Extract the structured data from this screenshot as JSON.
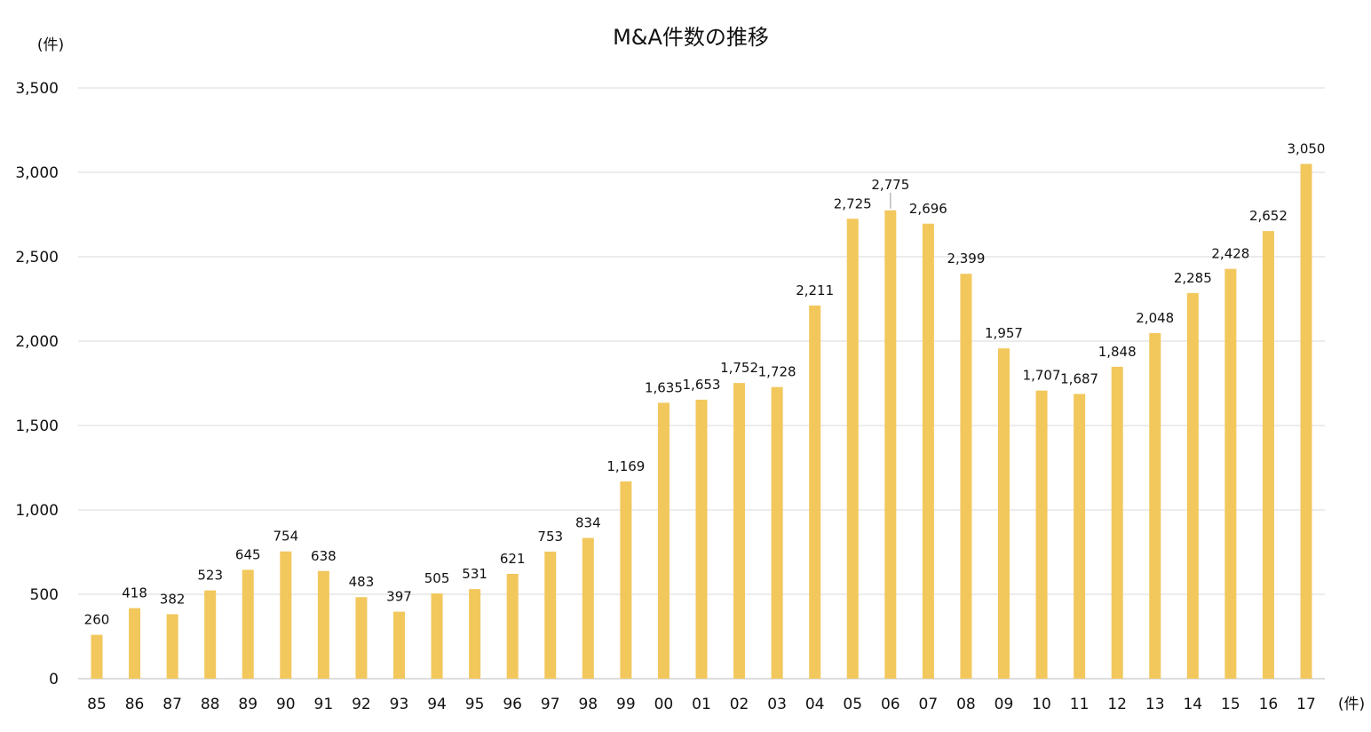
{
  "chart_data": {
    "type": "bar",
    "title": "M&A件数の推移",
    "ylabel": "(件)",
    "xlabel": "(件)",
    "ylim": [
      0,
      3500
    ],
    "yticks": [
      0,
      500,
      1000,
      1500,
      2000,
      2500,
      3000,
      3500
    ],
    "ytick_labels": [
      "0",
      "500",
      "1,000",
      "1,500",
      "2,000",
      "2,500",
      "3,000",
      "3,500"
    ],
    "grid": true,
    "bar_color": "#F2C75C",
    "categories": [
      "85",
      "86",
      "87",
      "88",
      "89",
      "90",
      "91",
      "92",
      "93",
      "94",
      "95",
      "96",
      "97",
      "98",
      "99",
      "00",
      "01",
      "02",
      "03",
      "04",
      "05",
      "06",
      "07",
      "08",
      "09",
      "10",
      "11",
      "12",
      "13",
      "14",
      "15",
      "16",
      "17"
    ],
    "values": [
      260,
      418,
      382,
      523,
      645,
      754,
      638,
      483,
      397,
      505,
      531,
      621,
      753,
      834,
      1169,
      1635,
      1653,
      1752,
      1728,
      2211,
      2725,
      2775,
      2696,
      2399,
      1957,
      1707,
      1687,
      1848,
      2048,
      2285,
      2428,
      2652,
      3050
    ],
    "data_labels": [
      "260",
      "418",
      "382",
      "523",
      "645",
      "754",
      "638",
      "483",
      "397",
      "505",
      "531",
      "621",
      "753",
      "834",
      "1,169",
      "1,635",
      "1,653",
      "1,752",
      "1,728",
      "2,211",
      "2,725",
      "2,775",
      "2,696",
      "2,399",
      "1,957",
      "1,707",
      "1,687",
      "1,848",
      "2,048",
      "2,285",
      "2,428",
      "2,652",
      "3,050"
    ]
  }
}
